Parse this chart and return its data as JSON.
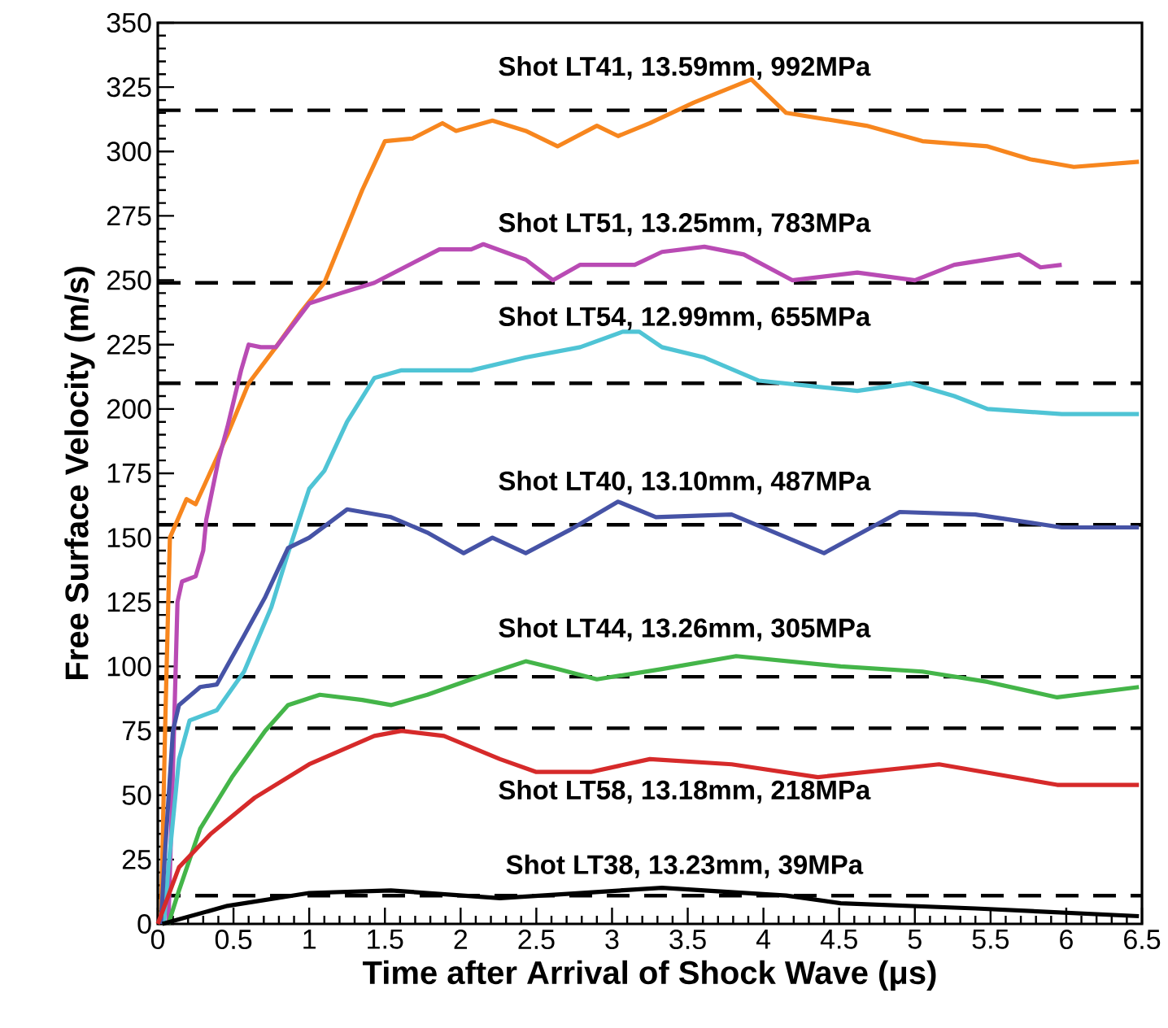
{
  "chart_data": {
    "type": "line",
    "xlabel": "Time after Arrival of Shock Wave (μs)",
    "ylabel": "Free Surface Velocity (m/s)",
    "xlim": [
      0,
      6.5
    ],
    "ylim": [
      0,
      350
    ],
    "xticks": [
      0,
      0.5,
      1,
      1.5,
      2,
      2.5,
      3,
      3.5,
      4,
      4.5,
      5,
      5.5,
      6,
      6.5
    ],
    "yticks": [
      0,
      25,
      50,
      75,
      100,
      125,
      150,
      175,
      200,
      225,
      250,
      275,
      300,
      325,
      350
    ],
    "series": [
      {
        "color": "#f7861e",
        "x": [
          0.02,
          0.05,
          0.08,
          0.19,
          0.25,
          0.46,
          0.6,
          0.78,
          0.95,
          1.1,
          1.35,
          1.5,
          1.68,
          1.88,
          1.97,
          2.21,
          2.43,
          2.64,
          2.9,
          3.04,
          3.25,
          3.54,
          3.92,
          4.15,
          4.68,
          5.05,
          5.48,
          5.76,
          6.05,
          6.48
        ],
        "values": [
          0,
          80,
          150,
          165,
          163,
          190,
          210,
          224,
          238,
          249,
          285,
          304,
          305,
          311,
          308,
          312,
          308,
          302,
          310,
          306,
          311,
          319,
          328,
          315,
          310,
          304,
          302,
          297,
          294,
          296
        ]
      },
      {
        "color": "#b94bb4",
        "x": [
          0.07,
          0.1,
          0.13,
          0.16,
          0.25,
          0.3,
          0.32,
          0.4,
          0.46,
          0.55,
          0.6,
          0.68,
          0.78,
          1.0,
          1.21,
          1.43,
          1.86,
          2.07,
          2.15,
          2.43,
          2.61,
          2.79,
          3.15,
          3.33,
          3.61,
          3.87,
          4.19,
          4.62,
          5.0,
          5.26,
          5.69,
          5.83,
          5.97
        ],
        "values": [
          0,
          60,
          125,
          133,
          135,
          145,
          157,
          180,
          193,
          215,
          225,
          224,
          224,
          241,
          245,
          249,
          262,
          262,
          264,
          258,
          250,
          256,
          256,
          261,
          263,
          260,
          250,
          253,
          250,
          256,
          260,
          255,
          256
        ]
      },
      {
        "color": "#4fc4d5",
        "x": [
          0.04,
          0.07,
          0.14,
          0.21,
          0.39,
          0.57,
          0.75,
          0.86,
          1.0,
          1.1,
          1.25,
          1.43,
          1.61,
          2.07,
          2.43,
          2.79,
          3.07,
          3.18,
          3.33,
          3.61,
          3.97,
          4.62,
          4.97,
          5.26,
          5.48,
          5.97,
          6.48
        ],
        "values": [
          0,
          22,
          64,
          79,
          83,
          98,
          123,
          144,
          169,
          176,
          195,
          212,
          215,
          215,
          220,
          224,
          230,
          230,
          224,
          220,
          211,
          207,
          210,
          205,
          200,
          198,
          198
        ]
      },
      {
        "color": "#4653a6",
        "x": [
          0.02,
          0.05,
          0.1,
          0.14,
          0.28,
          0.39,
          0.57,
          0.71,
          0.86,
          1.0,
          1.25,
          1.54,
          1.78,
          2.02,
          2.21,
          2.43,
          2.72,
          3.04,
          3.29,
          3.79,
          4.4,
          4.9,
          5.4,
          5.97,
          6.48
        ],
        "values": [
          0,
          30,
          75,
          85,
          92,
          93,
          112,
          127,
          146,
          150,
          161,
          158,
          152,
          144,
          150,
          144,
          153,
          164,
          158,
          159,
          144,
          160,
          159,
          154,
          154
        ]
      },
      {
        "color": "#44b549",
        "x": [
          0.07,
          0.14,
          0.28,
          0.49,
          0.71,
          0.86,
          1.07,
          1.35,
          1.54,
          1.78,
          2.07,
          2.43,
          2.64,
          2.9,
          3.33,
          3.82,
          4.51,
          5.05,
          5.48,
          5.94,
          6.48
        ],
        "values": [
          0,
          13,
          37,
          57,
          75,
          85,
          89,
          87,
          85,
          89,
          95,
          102,
          99,
          95,
          99,
          104,
          100,
          98,
          94,
          88,
          92
        ]
      },
      {
        "color": "#d62a2a",
        "x": [
          0.0,
          0.14,
          0.35,
          0.64,
          1.0,
          1.43,
          1.61,
          1.89,
          2.26,
          2.5,
          2.86,
          3.25,
          3.79,
          4.36,
          5.16,
          5.94,
          6.48
        ],
        "values": [
          0,
          22,
          35,
          49,
          62,
          73,
          75,
          73,
          64,
          59,
          59,
          64,
          62,
          57,
          62,
          54,
          54
        ]
      },
      {
        "color": "#000000",
        "x": [
          0.03,
          0.46,
          1.0,
          1.54,
          2.26,
          3.33,
          3.61,
          4.15,
          4.51,
          5.4,
          6.48
        ],
        "values": [
          0,
          7,
          12,
          13,
          10,
          14,
          13,
          11,
          8,
          6,
          3
        ]
      }
    ],
    "ref_lines": [
      {
        "axis": "y",
        "value": 316,
        "label": "Shot LT41, 13.59mm, 992MPa",
        "color": "#000000",
        "line_style": "dashed"
      },
      {
        "axis": "y",
        "value": 249,
        "label": "Shot LT51, 13.25mm, 783MPa",
        "color": "#000000",
        "line_style": "dashed"
      },
      {
        "axis": "y",
        "value": 210,
        "label": "Shot LT54, 12.99mm, 655MPa",
        "color": "#000000",
        "line_style": "dashed"
      },
      {
        "axis": "y",
        "value": 155,
        "label": "Shot LT40, 13.10mm, 487MPa",
        "color": "#000000",
        "line_style": "dashed"
      },
      {
        "axis": "y",
        "value": 96,
        "label": "Shot LT44, 13.26mm, 305MPa",
        "color": "#000000",
        "line_style": "dashed"
      },
      {
        "axis": "y",
        "value": 76,
        "label": "Shot LT58, 13.18mm, 218MPa",
        "color": "#000000",
        "line_style": "dashed"
      },
      {
        "axis": "y",
        "value": 11,
        "label": "Shot LT38, 13.23mm, 39MPa",
        "color": "#000000",
        "line_style": "dashed"
      }
    ]
  }
}
